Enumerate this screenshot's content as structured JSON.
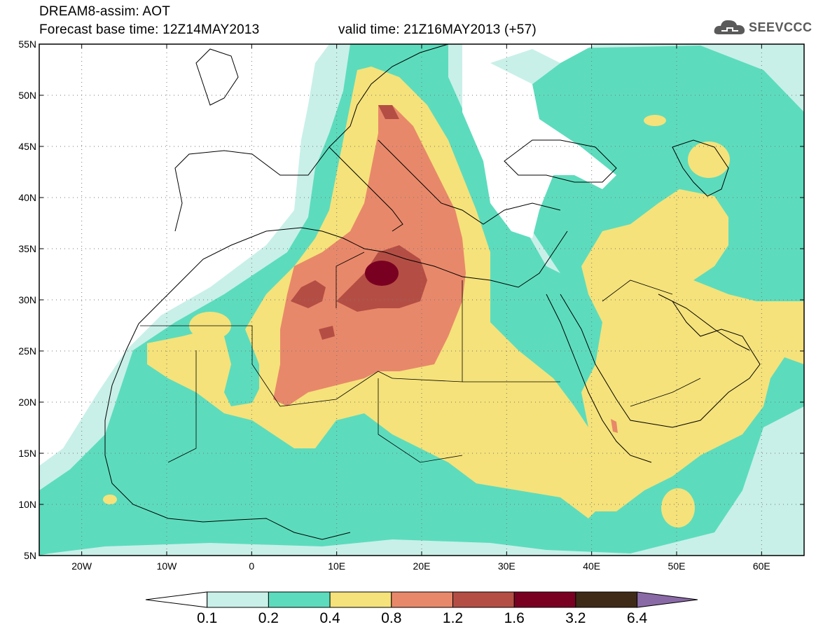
{
  "header": {
    "title": "DREAM8-assim: AOT",
    "base_time": "Forecast base time: 12Z14MAY2013",
    "valid_time": "valid time: 21Z16MAY2013 (+57)"
  },
  "logo": {
    "text": "SEEVCCC",
    "icon": "cloud-icon"
  },
  "map": {
    "lat_ticks": [
      "55N",
      "50N",
      "45N",
      "40N",
      "35N",
      "30N",
      "25N",
      "20N",
      "15N",
      "10N",
      "5N"
    ],
    "lon_ticks": [
      "20W",
      "10W",
      "0",
      "10E",
      "20E",
      "30E",
      "40E",
      "50E",
      "60E"
    ],
    "grid": "dotted",
    "variable": "AOT"
  },
  "colorbar": {
    "labels": [
      "0.1",
      "0.2",
      "0.4",
      "0.8",
      "1.2",
      "1.6",
      "3.2",
      "6.4"
    ],
    "colors": [
      "#ffffff",
      "#c8f0e8",
      "#5cdcbd",
      "#f5e27a",
      "#e8886a",
      "#b44e44",
      "#7a0022",
      "#3e2a16",
      "#8a6aa6"
    ]
  },
  "colors": {
    "c01": "#c8f0e8",
    "c02": "#5cdcbd",
    "c04": "#f5e27a",
    "c08": "#e8886a",
    "c12": "#b44e44",
    "c16": "#7a0022"
  }
}
